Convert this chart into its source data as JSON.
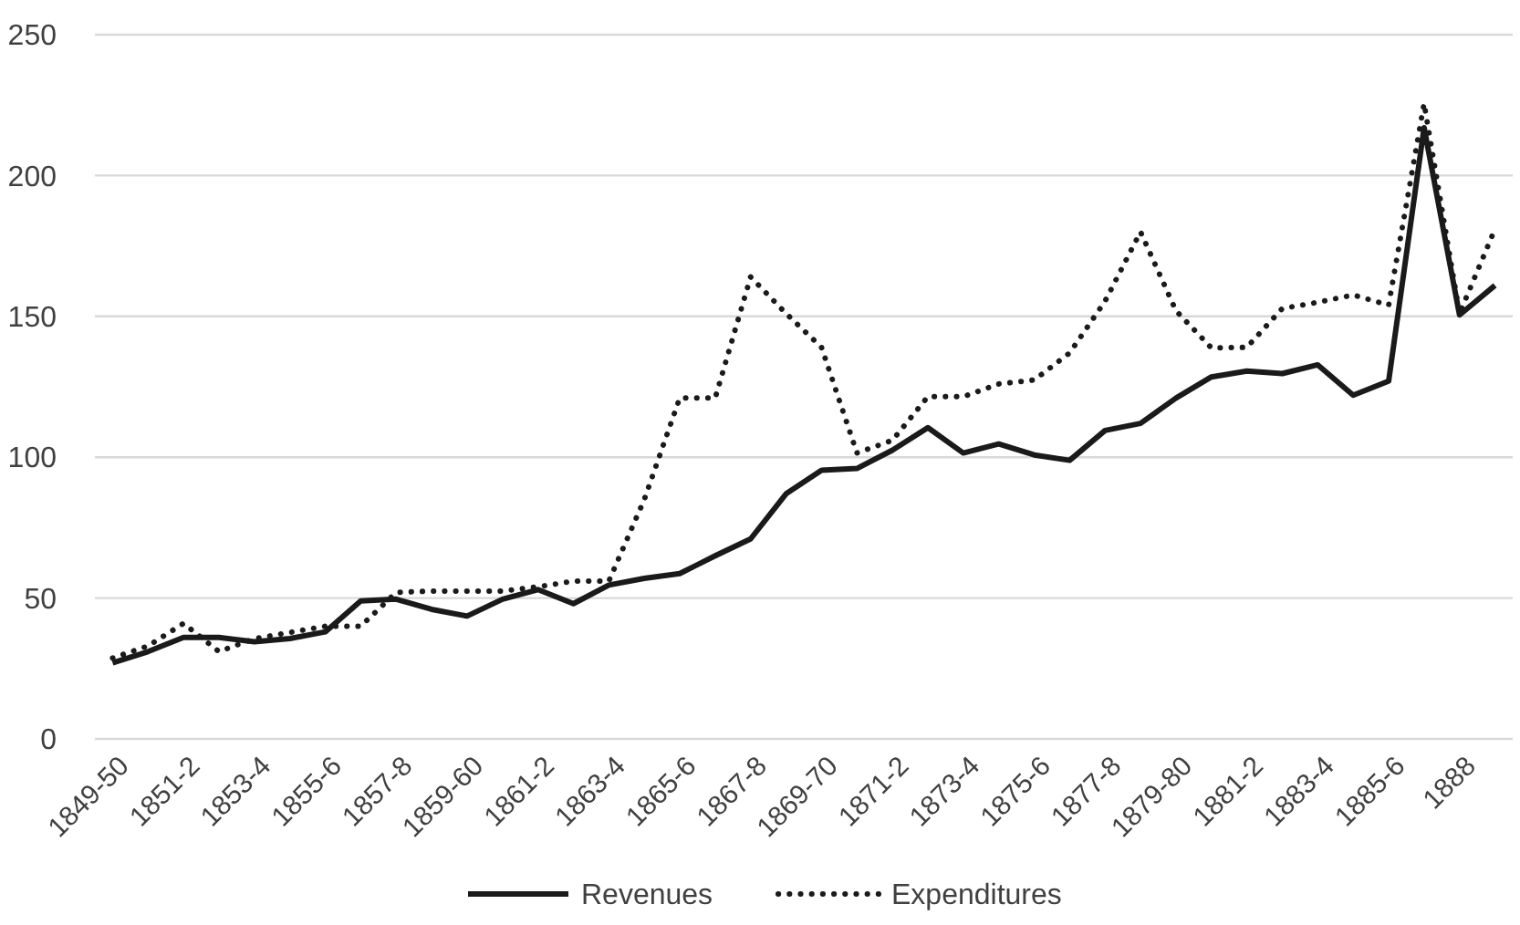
{
  "chart_data": {
    "type": "line",
    "categories": [
      "1849-50",
      null,
      "1851-2",
      null,
      "1853-4",
      null,
      "1855-6",
      null,
      "1857-8",
      null,
      "1859-60",
      null,
      "1861-2",
      null,
      "1863-4",
      null,
      "1865-6",
      null,
      "1867-8",
      null,
      "1869-70",
      null,
      "1871-2",
      null,
      "1873-4",
      null,
      "1875-6",
      null,
      "1877-8",
      null,
      "1879-80",
      null,
      "1881-2",
      null,
      "1883-4",
      null,
      "1885-6",
      null,
      "1888",
      null
    ],
    "series": [
      {
        "name": "Revenues",
        "color": "#1a1a1a",
        "line_style": "solid",
        "values": [
          27,
          31,
          36,
          36,
          34.5,
          35.6,
          38,
          49,
          49.6,
          46,
          43.6,
          49.6,
          53,
          48,
          54.6,
          57,
          58.7,
          65,
          71,
          87,
          95.4,
          96,
          102.5,
          110.5,
          101.5,
          104.7,
          100.8,
          98.9,
          109.5,
          112,
          121,
          128.5,
          130.6,
          129.7,
          132.8,
          122,
          127,
          217,
          150.5,
          161
        ]
      },
      {
        "name": "Expenditures",
        "color": "#1a1a1a",
        "line_style": "dotted",
        "values": [
          28.7,
          33,
          41,
          31,
          35.6,
          37.8,
          40,
          40,
          52,
          52.5,
          52.5,
          52.5,
          54,
          56,
          56,
          85,
          121,
          121,
          164,
          151,
          139,
          101.5,
          106,
          121.5,
          121.5,
          126,
          127.4,
          137,
          155.4,
          180,
          152,
          138.8,
          139,
          152.8,
          155,
          157.6,
          154,
          225.6,
          151,
          181
        ]
      }
    ],
    "ylim": [
      0,
      250
    ],
    "yticks": [
      0,
      50,
      100,
      150,
      200,
      250
    ],
    "grid": "y",
    "legend": "bottom"
  }
}
